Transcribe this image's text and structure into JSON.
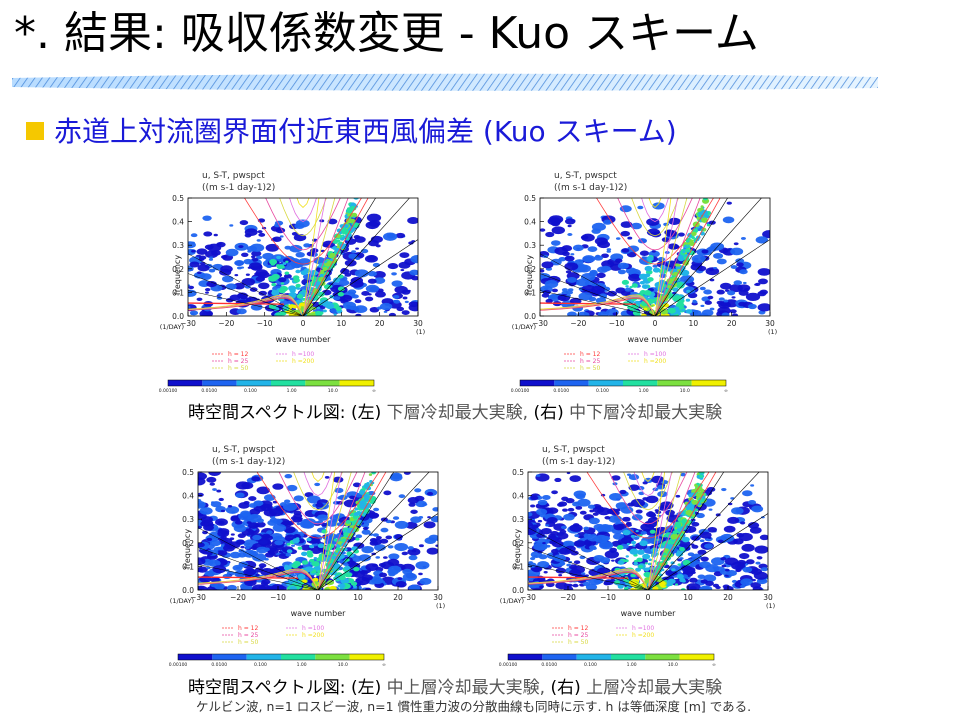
{
  "slide": {
    "title": "*. 結果: 吸収係数変更 - Kuo スキーム",
    "subtitle": "赤道上対流圏界面付近東西風偏差 (Kuo スキーム)",
    "caption_top": {
      "lead": "時空間スペクトル図: ",
      "left_tag": "(左)",
      "left_text": " 下層冷却最大実験, ",
      "right_tag": "(右)",
      "right_text": " 中下層冷却最大実験"
    },
    "caption_bottom": {
      "lead": "時空間スペクトル図: ",
      "left_tag": "(左)",
      "left_text": " 中上層冷却最大実験, ",
      "right_tag": "(右)",
      "right_text": " 上層冷却最大実験"
    },
    "footnote": "ケルビン波, n=1 ロスビー波, n=1 慣性重力波の分散曲線も同時に示す. h は等価深度 [m] である."
  },
  "plot_labels": {
    "header_line1": "u, S-T, pwspct",
    "header_line2": "((m s-1 day-1)2)",
    "ylabel": "frequency",
    "xlabel": "wave number",
    "y_unit": "(1/DAY)",
    "x_unit": "(1)",
    "yticks": [
      "0.0",
      "0.1",
      "0.2",
      "0.3",
      "0.4",
      "0.5"
    ],
    "xticks": [
      "−30",
      "−20",
      "−10",
      "0",
      "10",
      "20",
      "30"
    ],
    "legend": [
      "h = 12",
      "h = 25",
      "h = 50",
      "h =100",
      "h =200"
    ],
    "colorbar_ticks": [
      "0.00100",
      "0.0100",
      "0.100",
      "1.00",
      "10.0",
      "∞"
    ]
  },
  "colors": {
    "title": "#000000",
    "subtitle": "#1a1ad8",
    "bullet": "#f5c800",
    "levels": [
      "#1010cc",
      "#1e64f0",
      "#22b4e8",
      "#22e0a0",
      "#7ce040",
      "#f0f000"
    ],
    "dispersion": {
      "h12": "#ff3c3c",
      "h25": "#e84aa0",
      "h50": "#d8d840",
      "h100": "#e070e0",
      "h200": "#f0e020"
    }
  },
  "panels": [
    {
      "id": "lower-cooling",
      "density": 0.45,
      "kelvin_spread": 1.0
    },
    {
      "id": "mid-lower-cooling",
      "density": 0.42,
      "kelvin_spread": 1.0
    },
    {
      "id": "mid-upper-cooling",
      "density": 0.72,
      "kelvin_spread": 1.4
    },
    {
      "id": "upper-cooling",
      "density": 0.7,
      "kelvin_spread": 1.4
    }
  ]
}
